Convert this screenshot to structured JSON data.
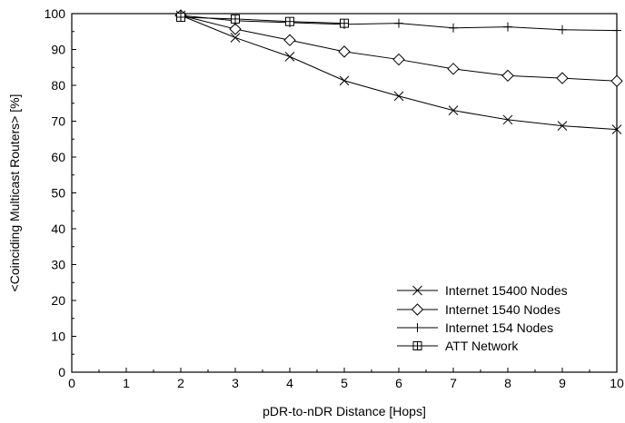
{
  "chart_data": {
    "type": "line",
    "title": "",
    "xlabel": "pDR-to-nDR Distance [Hops]",
    "ylabel": "<Coinciding Multicast Routers> [%]",
    "xlim": [
      0,
      10
    ],
    "ylim": [
      0,
      100
    ],
    "xticks": [
      0,
      1,
      2,
      3,
      4,
      5,
      6,
      7,
      8,
      9,
      10
    ],
    "yticks": [
      0,
      10,
      20,
      30,
      40,
      50,
      60,
      70,
      80,
      90,
      100
    ],
    "grid": false,
    "legend_position": "bottom-right",
    "series": [
      {
        "name": "Internet 15400 Nodes",
        "marker": "x",
        "x": [
          2,
          3,
          4,
          5,
          6,
          7,
          8,
          9,
          10
        ],
        "values": [
          99.5,
          93.3,
          88.0,
          81.3,
          77.0,
          73.0,
          70.4,
          68.7,
          67.7
        ]
      },
      {
        "name": "Internet 1540 Nodes",
        "marker": "diamond",
        "x": [
          2,
          3,
          4,
          5,
          6,
          7,
          8,
          9,
          10
        ],
        "values": [
          99.5,
          95.7,
          92.6,
          89.4,
          87.2,
          84.6,
          82.7,
          82.0,
          81.2
        ]
      },
      {
        "name": "Internet 154 Nodes",
        "marker": "plus",
        "x": [
          2,
          3,
          4,
          5,
          6,
          7,
          8,
          9,
          10
        ],
        "values": [
          99.5,
          98.0,
          97.5,
          97.0,
          97.3,
          96.0,
          96.3,
          95.5,
          95.3
        ]
      },
      {
        "name": "ATT Network",
        "marker": "square",
        "x": [
          2,
          3,
          4,
          5
        ],
        "values": [
          99.0,
          98.5,
          97.8,
          97.3
        ]
      }
    ]
  }
}
